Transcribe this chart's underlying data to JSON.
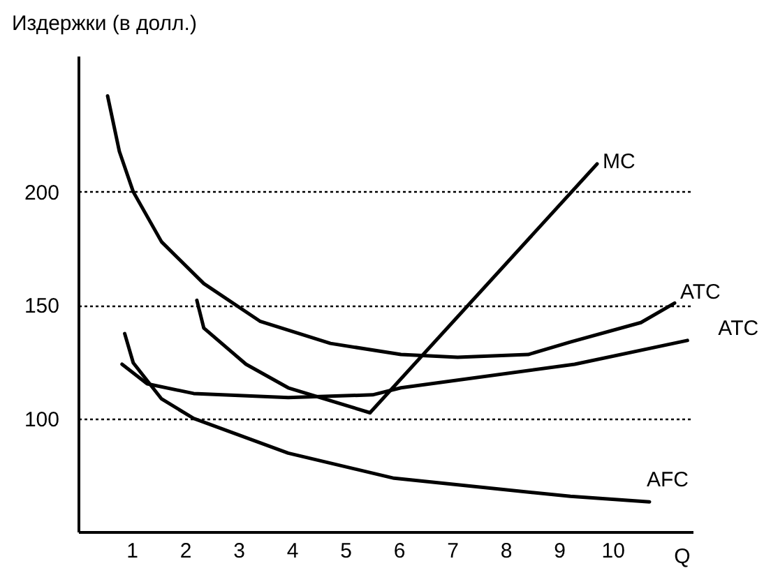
{
  "chart_data": {
    "type": "line",
    "ylabel": "Издержки (в долл.)",
    "xlabel": "Q",
    "xlim": [
      0,
      11.5
    ],
    "xticks": [
      1,
      2,
      3,
      4,
      5,
      6,
      7,
      8,
      9,
      10
    ],
    "ylim": [
      50,
      260
    ],
    "yticks": [
      100,
      150,
      200
    ],
    "grid": "y",
    "marker": "none",
    "line_style": "solid",
    "series": [
      {
        "name": "MC",
        "color": "#000000",
        "x": [
          5.46,
          9.71
        ],
        "values": [
          102.5,
          212.3
        ]
      },
      {
        "name": "ATC",
        "color": "#000000",
        "x": [
          0.55,
          0.77,
          1.03,
          1.56,
          2.35,
          3.4,
          4.72,
          6.04,
          7.1,
          8.42,
          9.21,
          10.53,
          11.16
        ],
        "values": [
          242.3,
          217.8,
          200,
          177.9,
          159.5,
          142.9,
          133.1,
          128.2,
          127,
          128.2,
          133.7,
          142.3,
          150.9
        ]
      },
      {
        "name": "ATC",
        "color": "#000000",
        "x": [
          0.82,
          1.29,
          2.16,
          3.93,
          5.51,
          6.04,
          9.29,
          11.4
        ],
        "values": [
          123.9,
          115.3,
          111,
          109.2,
          110.4,
          113.5,
          123.9,
          134.4
        ]
      },
      {
        "name": "AFC",
        "color": "#000000",
        "x": [
          0.87,
          1.03,
          1.56,
          2.16,
          3.93,
          5.91,
          9.21,
          10.69
        ],
        "values": [
          137.4,
          124.5,
          108.6,
          100,
          84.7,
          73.6,
          65.6,
          63.2
        ]
      },
      {
        "color": "#000000",
        "x": [
          2.22,
          2.35,
          3.14,
          3.93,
          5.46
        ],
        "values": [
          152.1,
          139.9,
          123.9,
          113.5,
          102.5
        ]
      }
    ]
  }
}
